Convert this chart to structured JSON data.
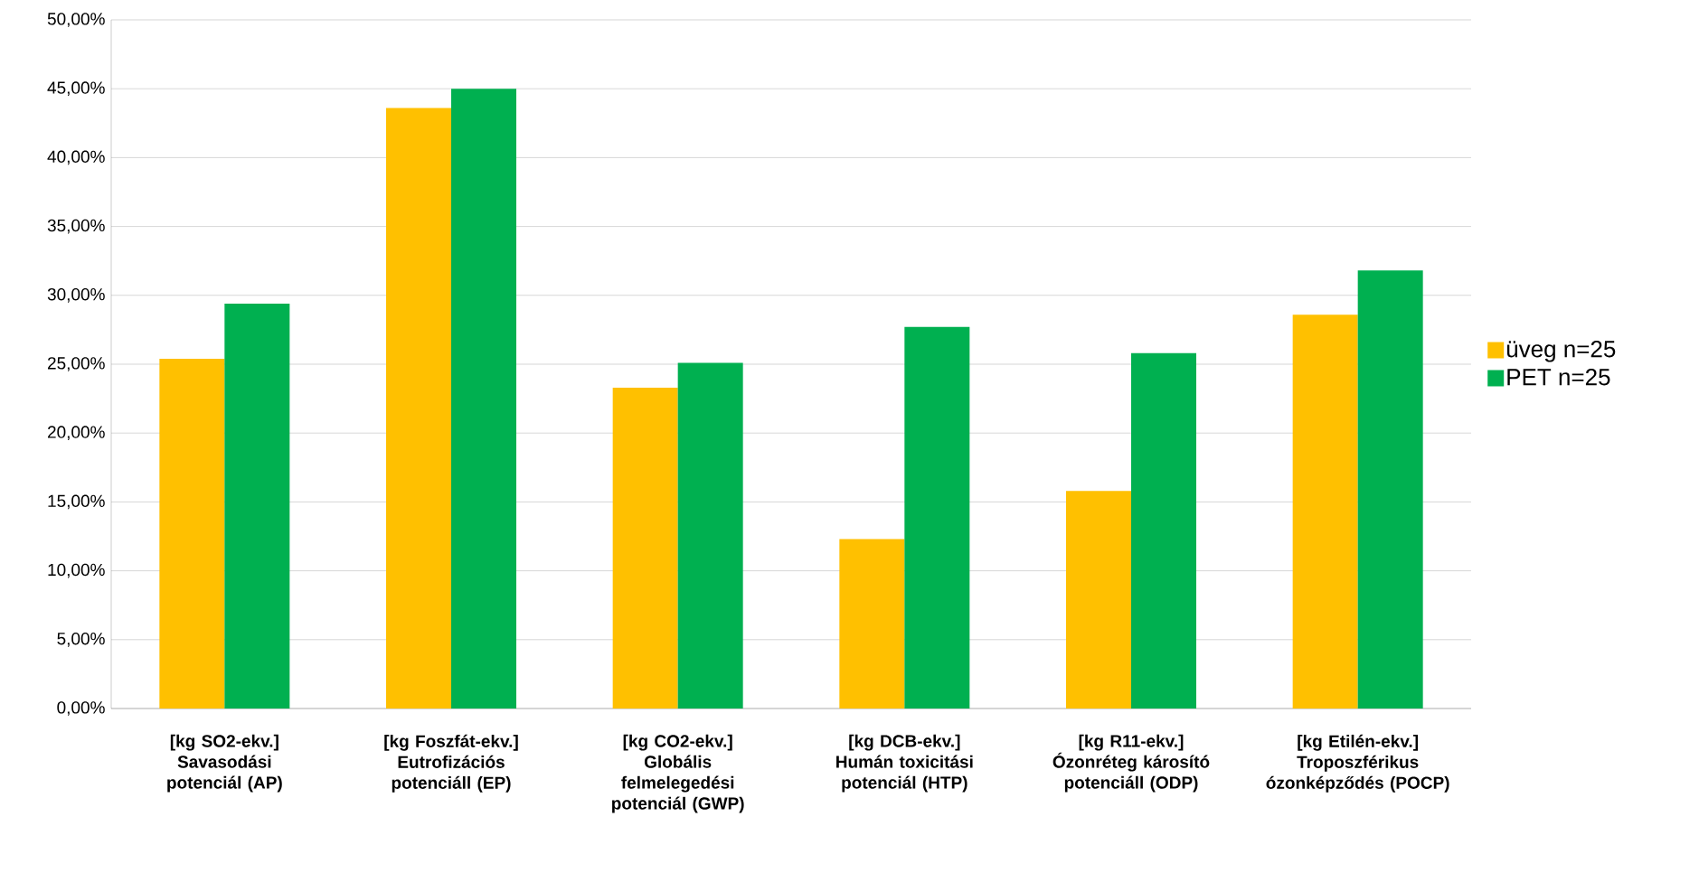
{
  "chart_data": {
    "type": "bar",
    "categories": [
      "[kg SO2-ekv.]\nSavasodási potenciál (AP)",
      "[kg Foszfát-ekv.]\nEutrofizációs potenciáll (EP)",
      "[kg CO2-ekv.]\nGlobális felmelegedési potenciál (GWP)",
      "[kg DCB-ekv.]\nHumán toxicitási potenciál (HTP)",
      "[kg R11-ekv.]\nÓzonréteg károsító potenciáll (ODP)",
      "[kg Etilén-ekv.]\nTroposzférikus ózonképződés (POCP)"
    ],
    "series": [
      {
        "name": "üveg n=25",
        "color": "#ffc000",
        "values": [
          25.4,
          43.6,
          23.3,
          12.3,
          15.8,
          28.6
        ]
      },
      {
        "name": "PET n=25",
        "color": "#00b050",
        "values": [
          29.4,
          45.0,
          25.1,
          27.7,
          25.8,
          31.8
        ]
      }
    ],
    "ylim": [
      0,
      50
    ],
    "yticks": [
      {
        "value": 0,
        "label": "0,00%"
      },
      {
        "value": 5,
        "label": "5,00%"
      },
      {
        "value": 10,
        "label": "10,00%"
      },
      {
        "value": 15,
        "label": "15,00%"
      },
      {
        "value": 20,
        "label": "20,00%"
      },
      {
        "value": 25,
        "label": "25,00%"
      },
      {
        "value": 30,
        "label": "30,00%"
      },
      {
        "value": 35,
        "label": "35,00%"
      },
      {
        "value": 40,
        "label": "40,00%"
      },
      {
        "value": 45,
        "label": "45,00%"
      },
      {
        "value": 50,
        "label": "50,00%"
      }
    ],
    "grid": "y",
    "legend": "right"
  }
}
